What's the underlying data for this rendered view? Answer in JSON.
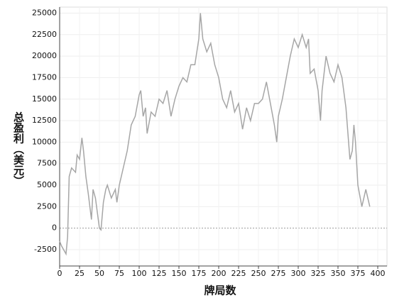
{
  "chart_data": {
    "type": "line",
    "x_label": "牌局数",
    "y_label": "总盈利（美元）",
    "x": [
      0,
      2,
      5,
      8,
      10,
      12,
      15,
      20,
      22,
      25,
      28,
      30,
      33,
      36,
      40,
      42,
      45,
      50,
      52,
      55,
      58,
      60,
      65,
      70,
      72,
      75,
      80,
      85,
      90,
      95,
      100,
      102,
      105,
      108,
      110,
      115,
      120,
      125,
      130,
      135,
      140,
      145,
      150,
      155,
      160,
      165,
      170,
      175,
      177,
      180,
      185,
      190,
      195,
      200,
      205,
      210,
      215,
      220,
      225,
      230,
      235,
      240,
      245,
      250,
      255,
      260,
      265,
      270,
      273,
      275,
      280,
      285,
      290,
      295,
      300,
      305,
      310,
      313,
      315,
      320,
      325,
      328,
      330,
      335,
      340,
      345,
      350,
      355,
      360,
      365,
      368,
      370,
      372,
      375,
      380,
      385,
      390
    ],
    "series": [
      {
        "color": "#a6a6a6",
        "values": [
          -1500,
          -2000,
          -2500,
          -3000,
          -1000,
          6000,
          7000,
          6500,
          8500,
          8000,
          10500,
          9000,
          6000,
          4000,
          1000,
          4500,
          3500,
          0,
          -200,
          3000,
          4500,
          5000,
          3500,
          4500,
          3000,
          5000,
          7000,
          9000,
          12000,
          13000,
          15500,
          16000,
          13000,
          14000,
          11000,
          13500,
          13000,
          15000,
          14500,
          16000,
          13000,
          15000,
          16500,
          17500,
          17000,
          19000,
          19000,
          22000,
          25000,
          22000,
          20500,
          21500,
          19000,
          17500,
          15000,
          14000,
          16000,
          13500,
          14500,
          11500,
          14000,
          12500,
          14500,
          14500,
          15000,
          17000,
          14500,
          12000,
          10000,
          13000,
          15000,
          17500,
          20000,
          22000,
          21000,
          22500,
          21000,
          22000,
          18000,
          18500,
          16000,
          12500,
          16000,
          20000,
          18000,
          17000,
          19000,
          17500,
          14000,
          8000,
          9000,
          12000,
          10000,
          5000,
          2500,
          4500,
          2500
        ]
      }
    ],
    "xlim": [
      0,
      400
    ],
    "xticks": [
      0,
      25,
      50,
      75,
      100,
      125,
      150,
      175,
      200,
      225,
      250,
      275,
      300,
      325,
      350,
      375,
      400
    ],
    "ylim": [
      -4400,
      25700
    ],
    "yticks": [
      -2500,
      0,
      2500,
      5000,
      7500,
      10000,
      12500,
      15000,
      17500,
      20000,
      22500,
      25000
    ],
    "grid": true
  }
}
